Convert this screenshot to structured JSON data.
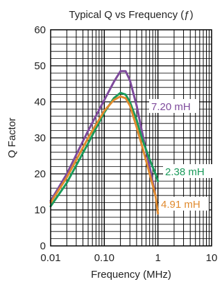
{
  "chart_data": {
    "type": "line",
    "title": "Typical Q vs Frequency (ƒ)",
    "xlabel": "Frequency (MHz)",
    "ylabel": "Q Factor",
    "x_scale": "log",
    "xlim": [
      0.01,
      10
    ],
    "ylim": [
      0,
      60
    ],
    "x_ticks": [
      "0.01",
      "0.10",
      "1",
      "10"
    ],
    "y_ticks": [
      "0",
      "10",
      "20",
      "30",
      "40",
      "50",
      "60"
    ],
    "grid": true,
    "series": [
      {
        "name": "7.20 mH",
        "color": "#7e4a9c",
        "x": [
          0.01,
          0.02,
          0.05,
          0.1,
          0.15,
          0.2,
          0.25,
          0.3,
          0.4,
          0.5,
          0.7,
          0.9
        ],
        "y": [
          12.5,
          20,
          32,
          40.5,
          45.5,
          48.5,
          48.5,
          46,
          39,
          32,
          22,
          14
        ]
      },
      {
        "name": "2.38 mH",
        "color": "#1a9a5a",
        "x": [
          0.01,
          0.02,
          0.05,
          0.1,
          0.15,
          0.2,
          0.25,
          0.3,
          0.4,
          0.5,
          0.7,
          0.9,
          1.0
        ],
        "y": [
          11,
          17.5,
          28.5,
          37,
          41,
          42.5,
          42,
          40,
          35,
          30,
          24,
          20,
          18
        ]
      },
      {
        "name": "4.91 mH",
        "color": "#e08a2e",
        "x": [
          0.01,
          0.02,
          0.05,
          0.1,
          0.15,
          0.2,
          0.25,
          0.3,
          0.4,
          0.5,
          0.7,
          0.9,
          1.0
        ],
        "y": [
          12,
          19,
          30,
          37.5,
          40.5,
          41.5,
          41,
          39,
          33,
          28,
          20,
          14,
          9
        ]
      }
    ]
  }
}
